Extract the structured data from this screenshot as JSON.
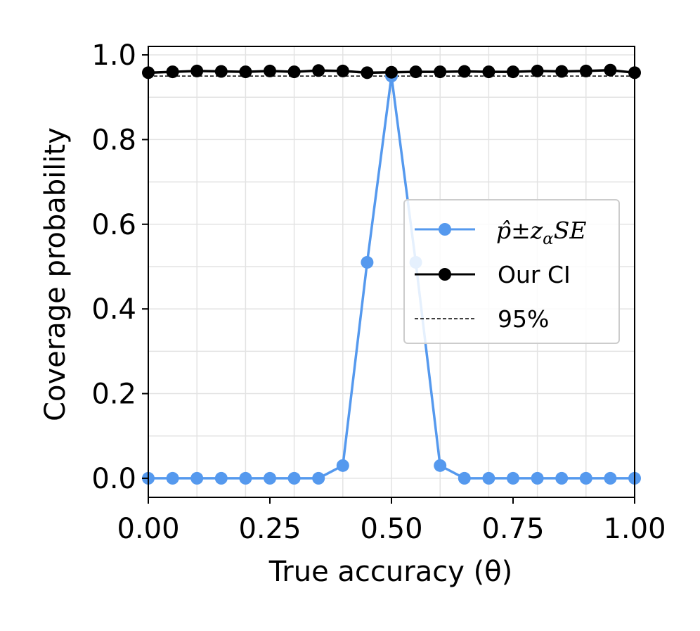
{
  "chart_data": {
    "type": "line",
    "title": "",
    "xlabel": "True accuracy (θ)",
    "ylabel": "Coverage probability",
    "xlim": [
      0,
      1
    ],
    "ylim": [
      -0.045,
      1.02
    ],
    "xticks": [
      "0.00",
      "0.25",
      "0.50",
      "0.75",
      "1.00"
    ],
    "xtick_values": [
      0,
      0.25,
      0.5,
      0.75,
      1.0
    ],
    "yticks": [
      "0.0",
      "0.2",
      "0.4",
      "0.6",
      "0.8",
      "1.0"
    ],
    "ytick_values": [
      0,
      0.2,
      0.4,
      0.6,
      0.8,
      1.0
    ],
    "grid": true,
    "legend_position": "center-right",
    "x": [
      0,
      0.05,
      0.1,
      0.15,
      0.2,
      0.25,
      0.3,
      0.35,
      0.4,
      0.45,
      0.5,
      0.55,
      0.6,
      0.65,
      0.7,
      0.75,
      0.8,
      0.85,
      0.9,
      0.95,
      1.0
    ],
    "series": [
      {
        "name": "p̂±zαSE",
        "color": "#5599ee",
        "style": "line-marker",
        "values": [
          0,
          0,
          0,
          0,
          0,
          0,
          0,
          0,
          0.03,
          0.51,
          0.95,
          0.51,
          0.03,
          0,
          0,
          0,
          0,
          0,
          0,
          0,
          0
        ]
      },
      {
        "name": "Our CI",
        "color": "#000000",
        "style": "line-marker",
        "values": [
          0.958,
          0.96,
          0.962,
          0.961,
          0.96,
          0.962,
          0.96,
          0.963,
          0.962,
          0.958,
          0.959,
          0.96,
          0.96,
          0.961,
          0.96,
          0.96,
          0.962,
          0.961,
          0.962,
          0.964,
          0.958
        ]
      },
      {
        "name": "95%",
        "color": "#000000",
        "style": "dashed",
        "values": [
          0.95,
          0.95,
          0.95,
          0.95,
          0.95,
          0.95,
          0.95,
          0.95,
          0.95,
          0.95,
          0.95,
          0.95,
          0.95,
          0.95,
          0.95,
          0.95,
          0.95,
          0.95,
          0.95,
          0.95,
          0.95
        ]
      }
    ],
    "legend": {
      "entries": [
        {
          "text_main": "p̂±z",
          "text_sub": "α",
          "text_tail": "SE"
        },
        {
          "text_main": "Our CI"
        },
        {
          "text_main": "95%"
        }
      ]
    }
  }
}
